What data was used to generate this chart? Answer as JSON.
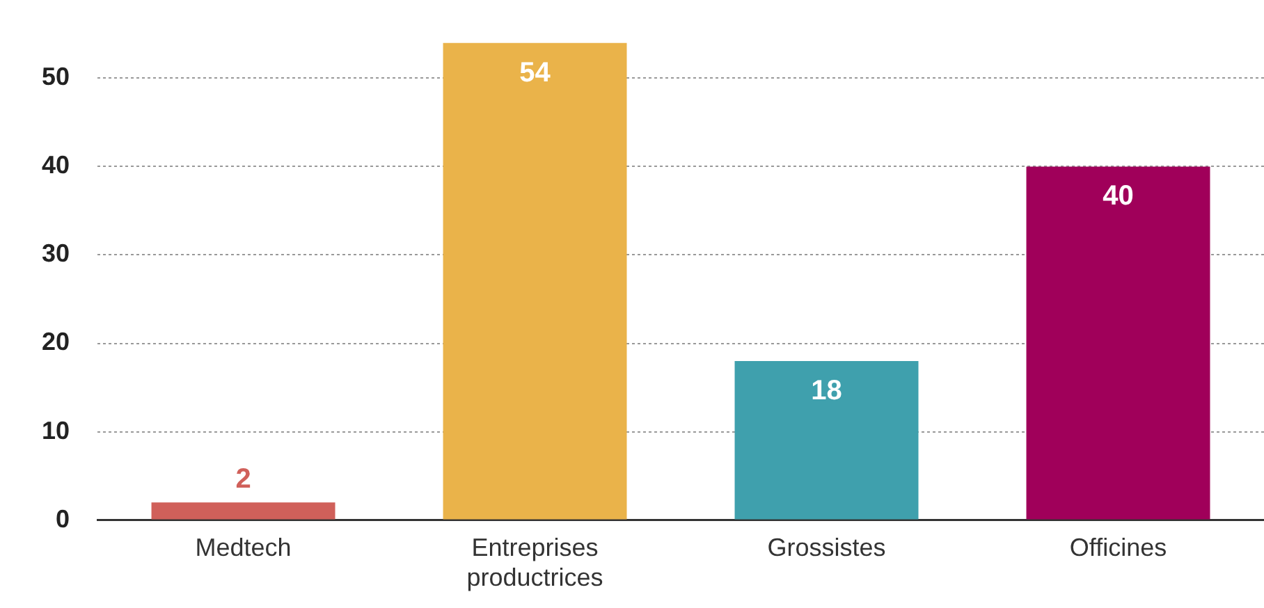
{
  "chart_data": {
    "type": "bar",
    "categories": [
      "Medtech",
      "Entreprises productrices",
      "Grossistes",
      "Officines"
    ],
    "values": [
      2,
      54,
      18,
      40
    ],
    "colors": [
      "#d0605a",
      "#eab34a",
      "#3fa0ad",
      "#a0005a"
    ],
    "ylim": [
      0,
      54
    ],
    "yticks": [
      0,
      10,
      20,
      30,
      40,
      50
    ],
    "grid": "y",
    "legend": false,
    "data_labels": true
  }
}
